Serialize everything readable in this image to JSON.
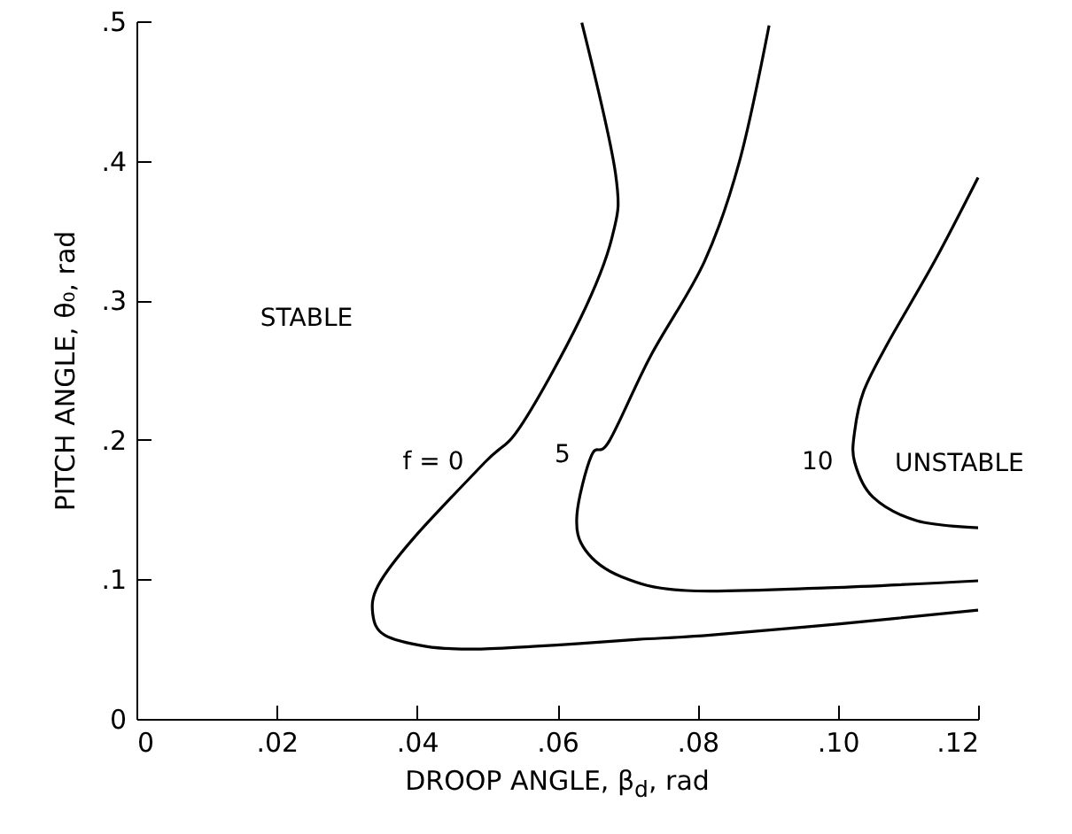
{
  "chart_data": {
    "type": "line",
    "xlabel": "DROOP ANGLE, β$_{d}$, rad",
    "ylabel": "PITCH ANGLE, θ₀, rad",
    "xlim": [
      0,
      0.12
    ],
    "ylim": [
      0,
      0.5
    ],
    "xticks": [
      0,
      {
        "value": 0.02,
        "label": ".02"
      },
      {
        "value": 0.04,
        "label": ".04"
      },
      {
        "value": 0.06,
        "label": ".06"
      },
      {
        "value": 0.08,
        "label": ".08"
      },
      {
        "value": 0.1,
        "label": ".10"
      },
      {
        "value": 0.12,
        "label": ".12"
      }
    ],
    "yticks": [
      0,
      {
        "value": 0.1,
        "label": ".1"
      },
      {
        "value": 0.2,
        "label": ".2"
      },
      {
        "value": 0.3,
        "label": ".3"
      },
      {
        "value": 0.4,
        "label": ".4"
      },
      {
        "value": 0.5,
        "label": ".5"
      }
    ],
    "grid": false,
    "marker": "none",
    "line_style": "solid",
    "series": [
      {
        "name": "f = 0",
        "color": "#000000",
        "x": [
          0.0635,
          0.0683,
          0.0678,
          0.0632,
          0.0548,
          0.0497,
          0.0396,
          0.0345,
          0.0337,
          0.0354,
          0.0413,
          0.048,
          0.0565,
          0.0632,
          0.0716,
          0.0818,
          0.1,
          0.12
        ],
        "values": [
          0.499,
          0.391,
          0.345,
          0.286,
          0.21,
          0.184,
          0.13,
          0.096,
          0.075,
          0.06,
          0.052,
          0.05,
          0.052,
          0.054,
          0.057,
          0.06,
          0.068,
          0.078
        ]
      },
      {
        "name": "5",
        "color": "#000000",
        "x": [
          0.0902,
          0.086,
          0.081,
          0.0733,
          0.0674,
          0.0649,
          0.0628,
          0.064,
          0.0691,
          0.0784,
          0.0987,
          0.12
        ],
        "values": [
          0.497,
          0.4,
          0.328,
          0.26,
          0.199,
          0.189,
          0.146,
          0.121,
          0.102,
          0.092,
          0.094,
          0.099
        ]
      },
      {
        "name": "10",
        "color": "#000000",
        "x": [
          0.12,
          0.1138,
          0.1071,
          0.1037,
          0.1024,
          0.1024,
          0.105,
          0.1113,
          0.12
        ],
        "values": [
          0.388,
          0.328,
          0.269,
          0.235,
          0.206,
          0.184,
          0.159,
          0.142,
          0.137
        ]
      }
    ],
    "annotations": [
      "STABLE",
      "UNSTABLE"
    ]
  }
}
